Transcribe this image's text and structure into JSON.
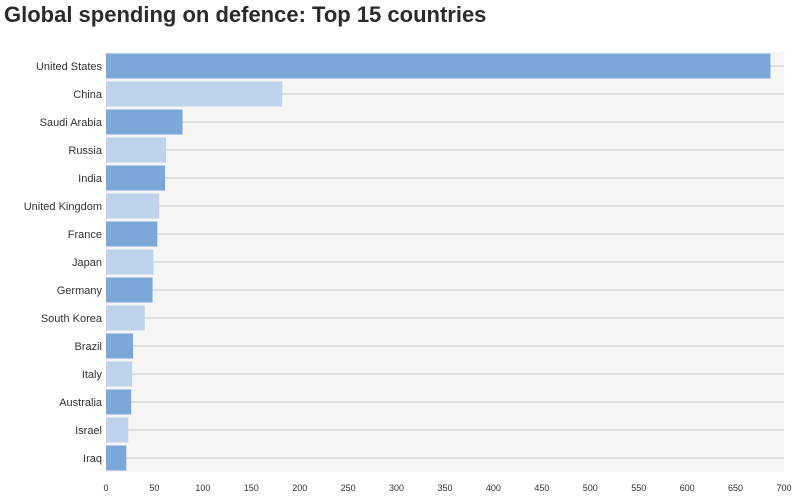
{
  "chart_data": {
    "type": "bar",
    "orientation": "horizontal",
    "title": "Global spending on defence: Top 15 countries",
    "categories": [
      "United States",
      "China",
      "Saudi Arabia",
      "Russia",
      "India",
      "United Kingdom",
      "France",
      "Japan",
      "Germany",
      "South Korea",
      "Brazil",
      "Italy",
      "Australia",
      "Israel",
      "Iraq"
    ],
    "values": [
      686,
      182,
      79,
      62,
      61,
      55,
      53,
      49,
      48,
      40,
      28,
      27,
      26,
      23,
      21
    ],
    "xlim": [
      0,
      700
    ],
    "xticks": [
      0,
      50,
      100,
      150,
      200,
      250,
      300,
      350,
      400,
      450,
      500,
      550,
      600,
      650,
      700
    ],
    "xlabel": "",
    "ylabel": "",
    "grid": true,
    "colors": {
      "dark": "#7ba8d8",
      "light": "#bfd4ec",
      "plot_bg": "#f5f5f5",
      "gridline": "#c8c8c8"
    }
  }
}
